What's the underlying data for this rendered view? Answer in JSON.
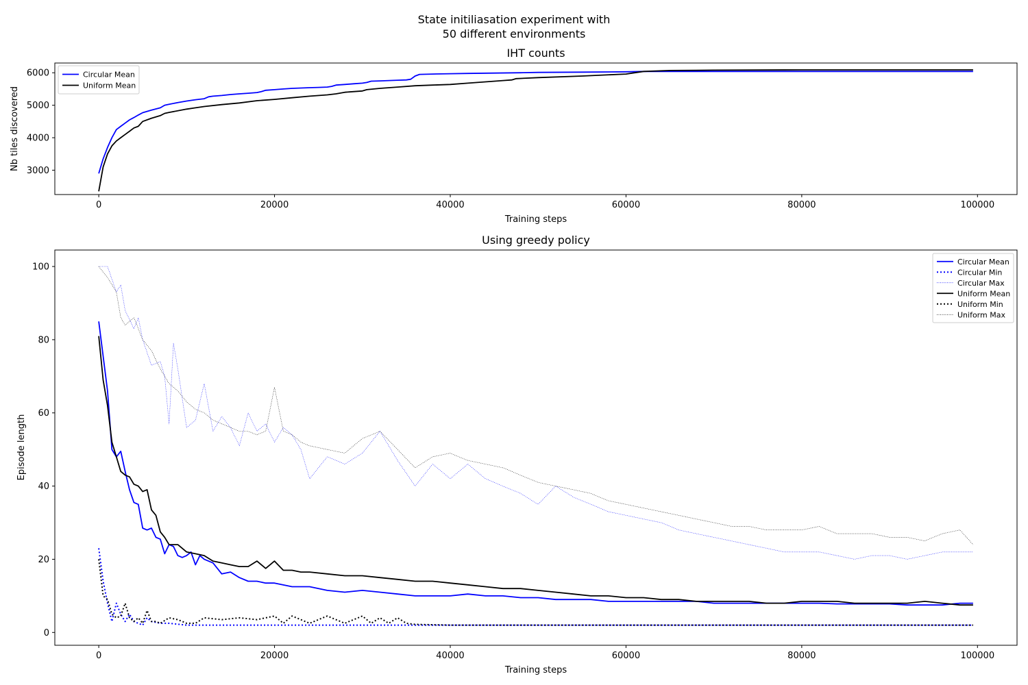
{
  "figure": {
    "suptitle_lines": [
      "State initiliasation experiment with",
      "50 different environments"
    ]
  },
  "chart_data": [
    {
      "type": "line",
      "title": "IHT counts",
      "xlabel": "Training steps",
      "ylabel": "Nb tiles discovered",
      "xlim": [
        -5000,
        104500
      ],
      "ylim": [
        2250,
        6300
      ],
      "xticks": [
        0,
        20000,
        40000,
        60000,
        80000,
        100000
      ],
      "yticks": [
        3000,
        4000,
        5000,
        6000
      ],
      "grid": false,
      "legend_position": "upper-left",
      "series": [
        {
          "name": "Circular Mean",
          "color": "#0000ff",
          "style": "solid",
          "x": [
            0,
            500,
            1000,
            1500,
            2000,
            2500,
            3000,
            3500,
            4000,
            4500,
            5000,
            6000,
            7000,
            7500,
            8000,
            9000,
            10000,
            11000,
            12000,
            12500,
            13000,
            14000,
            15000,
            16000,
            17000,
            18000,
            18500,
            19000,
            20000,
            21000,
            22000,
            23000,
            24000,
            25000,
            26000,
            26500,
            27000,
            28000,
            29000,
            30000,
            30500,
            31000,
            32000,
            33000,
            34000,
            35000,
            35500,
            36000,
            36500,
            38000,
            40000,
            42000,
            45000,
            48000,
            50000,
            55000,
            60000,
            62000,
            65000,
            70000,
            80000,
            90000,
            99500
          ],
          "y": [
            2900,
            3350,
            3700,
            4000,
            4250,
            4350,
            4450,
            4550,
            4620,
            4700,
            4770,
            4850,
            4920,
            5000,
            5030,
            5080,
            5130,
            5170,
            5200,
            5260,
            5280,
            5300,
            5330,
            5350,
            5370,
            5390,
            5420,
            5460,
            5480,
            5500,
            5520,
            5530,
            5540,
            5550,
            5560,
            5580,
            5620,
            5640,
            5660,
            5680,
            5700,
            5740,
            5750,
            5760,
            5770,
            5780,
            5800,
            5900,
            5950,
            5960,
            5970,
            5980,
            5990,
            6000,
            6010,
            6020,
            6030,
            6040,
            6040,
            6040,
            6040,
            6040,
            6040
          ]
        },
        {
          "name": "Uniform Mean",
          "color": "#000000",
          "style": "solid",
          "x": [
            0,
            500,
            1000,
            1500,
            2000,
            2500,
            3000,
            3500,
            4000,
            4500,
            5000,
            6000,
            7000,
            7500,
            8000,
            10000,
            11000,
            12000,
            14000,
            16000,
            18000,
            20000,
            22000,
            24000,
            26000,
            27000,
            28000,
            30000,
            30500,
            32000,
            34000,
            36000,
            38000,
            40000,
            42000,
            44000,
            46000,
            47000,
            47500,
            50000,
            55000,
            60000,
            61000,
            62000,
            65000,
            70000,
            80000,
            90000,
            99500
          ],
          "y": [
            2350,
            3100,
            3500,
            3750,
            3900,
            4000,
            4100,
            4200,
            4300,
            4350,
            4500,
            4600,
            4680,
            4750,
            4780,
            4880,
            4920,
            4960,
            5020,
            5070,
            5140,
            5180,
            5230,
            5280,
            5320,
            5350,
            5400,
            5440,
            5480,
            5520,
            5560,
            5600,
            5620,
            5640,
            5680,
            5720,
            5760,
            5780,
            5820,
            5850,
            5900,
            5960,
            6000,
            6040,
            6070,
            6080,
            6090,
            6090,
            6090
          ]
        }
      ]
    },
    {
      "type": "line",
      "title": "Using greedy policy",
      "xlabel": "Training steps",
      "ylabel": "Episode length",
      "xlim": [
        -5000,
        104500
      ],
      "ylim": [
        -3.5,
        104.5
      ],
      "xticks": [
        0,
        20000,
        40000,
        60000,
        80000,
        100000
      ],
      "yticks": [
        0,
        20,
        40,
        60,
        80,
        100
      ],
      "grid": false,
      "legend_position": "upper-right",
      "series": [
        {
          "name": "Circular Mean",
          "color": "#0000ff",
          "style": "solid",
          "x": [
            0,
            1000,
            1500,
            2000,
            2500,
            3000,
            3500,
            4000,
            4500,
            5000,
            5500,
            6000,
            6500,
            7000,
            7500,
            8000,
            8500,
            9000,
            9500,
            10000,
            10500,
            11000,
            11500,
            12000,
            13000,
            14000,
            15000,
            16000,
            17000,
            18000,
            19000,
            20000,
            22000,
            24000,
            26000,
            28000,
            30000,
            32000,
            34000,
            36000,
            38000,
            40000,
            42000,
            44000,
            46000,
            48000,
            50000,
            52000,
            54000,
            56000,
            58000,
            60000,
            62000,
            64000,
            66000,
            68000,
            70000,
            72000,
            74000,
            76000,
            78000,
            80000,
            82000,
            84000,
            86000,
            88000,
            90000,
            92000,
            94000,
            96000,
            98000,
            99500
          ],
          "y": [
            85,
            66,
            50,
            48,
            49.5,
            44,
            39,
            35.5,
            35,
            28.5,
            28,
            28.5,
            26,
            25.5,
            21.5,
            24,
            23.5,
            21,
            20.5,
            21,
            22,
            18.5,
            21,
            20,
            19,
            16,
            16.5,
            15,
            14,
            14,
            13.5,
            13.5,
            12.5,
            12.5,
            11.5,
            11,
            11.5,
            11,
            10.5,
            10,
            10,
            10,
            10.5,
            10,
            10,
            9.5,
            9.5,
            9,
            9,
            9,
            8.5,
            8.5,
            8.5,
            8.5,
            8.5,
            8.5,
            8,
            8,
            8,
            8,
            8,
            8,
            8,
            7.8,
            7.8,
            7.8,
            7.8,
            7.5,
            7.5,
            7.5,
            8,
            8
          ]
        },
        {
          "name": "Circular Min",
          "color": "#0000ff",
          "style": "dotted",
          "x": [
            0,
            500,
            1000,
            1500,
            2000,
            2500,
            3000,
            3500,
            4000,
            5000,
            5500,
            6000,
            7000,
            8000,
            10000,
            15000,
            20000,
            25000,
            30000,
            35000,
            40000,
            50000,
            60000,
            70000,
            80000,
            90000,
            99500
          ],
          "y": [
            23,
            14,
            8,
            3,
            8,
            5,
            3,
            5,
            3,
            2,
            4,
            3,
            2.5,
            2.5,
            2,
            2,
            2,
            2,
            2,
            2,
            2,
            2,
            2,
            2,
            2,
            2,
            2
          ]
        },
        {
          "name": "Circular Max",
          "color": "#0000ff",
          "style": "thin-dotted",
          "x": [
            0,
            1000,
            2000,
            2500,
            3000,
            4000,
            4500,
            5000,
            6000,
            7000,
            7500,
            8000,
            8500,
            9000,
            10000,
            11000,
            12000,
            13000,
            14000,
            15000,
            16000,
            17000,
            18000,
            19000,
            20000,
            21000,
            22000,
            23000,
            24000,
            26000,
            28000,
            30000,
            32000,
            34000,
            36000,
            38000,
            40000,
            42000,
            44000,
            46000,
            48000,
            50000,
            52000,
            54000,
            56000,
            58000,
            60000,
            62000,
            64000,
            66000,
            68000,
            70000,
            72000,
            74000,
            76000,
            78000,
            80000,
            82000,
            84000,
            86000,
            88000,
            90000,
            92000,
            94000,
            96000,
            98000,
            99500
          ],
          "y": [
            100,
            100,
            93,
            95,
            88,
            83,
            86,
            80,
            73,
            74,
            70,
            57,
            79,
            72,
            56,
            58,
            68,
            55,
            59,
            56,
            51,
            60,
            55,
            57,
            52,
            56,
            54,
            50,
            42,
            48,
            46,
            49,
            55,
            47,
            40,
            46,
            42,
            46,
            42,
            40,
            38,
            35,
            40,
            37,
            35,
            33,
            32,
            31,
            30,
            28,
            27,
            26,
            25,
            24,
            23,
            22,
            22,
            22,
            21,
            20,
            21,
            21,
            20,
            21,
            22,
            22,
            22
          ]
        },
        {
          "name": "Uniform Mean",
          "color": "#000000",
          "style": "solid",
          "x": [
            0,
            500,
            1000,
            1500,
            2000,
            2500,
            3000,
            3500,
            4000,
            4500,
            5000,
            5500,
            6000,
            6500,
            7000,
            7500,
            8000,
            9000,
            10000,
            11000,
            12000,
            13000,
            14000,
            15000,
            16000,
            17000,
            18000,
            19000,
            20000,
            21000,
            22000,
            23000,
            24000,
            26000,
            28000,
            30000,
            32000,
            34000,
            36000,
            38000,
            40000,
            42000,
            44000,
            46000,
            48000,
            50000,
            52000,
            54000,
            56000,
            58000,
            60000,
            62000,
            64000,
            66000,
            68000,
            70000,
            72000,
            74000,
            76000,
            78000,
            80000,
            82000,
            84000,
            86000,
            88000,
            90000,
            92000,
            94000,
            96000,
            98000,
            99500
          ],
          "y": [
            81,
            69,
            62,
            52,
            48,
            44,
            43,
            42.5,
            40.5,
            40,
            38.5,
            39,
            33.5,
            32,
            27.5,
            26,
            24,
            24,
            22,
            21.5,
            21,
            19.5,
            19,
            18.5,
            18,
            18,
            19.5,
            17.5,
            19.5,
            17,
            17,
            16.5,
            16.5,
            16,
            15.5,
            15.5,
            15,
            14.5,
            14,
            14,
            13.5,
            13,
            12.5,
            12,
            12,
            11.5,
            11,
            10.5,
            10,
            10,
            9.5,
            9.5,
            9,
            9,
            8.5,
            8.5,
            8.5,
            8.5,
            8,
            8,
            8.5,
            8.5,
            8.5,
            8,
            8,
            8,
            8,
            8.5,
            8,
            7.5,
            7.5
          ]
        },
        {
          "name": "Uniform Min",
          "color": "#000000",
          "style": "dotted",
          "x": [
            0,
            500,
            1000,
            1500,
            2000,
            2500,
            3000,
            3500,
            4000,
            4500,
            5000,
            5500,
            6000,
            6500,
            7000,
            8000,
            9000,
            10000,
            11000,
            12000,
            14000,
            16000,
            18000,
            20000,
            21000,
            22000,
            24000,
            26000,
            28000,
            30000,
            31000,
            32000,
            33000,
            34000,
            35000,
            36000,
            40000,
            50000,
            60000,
            70000,
            80000,
            90000,
            99500
          ],
          "y": [
            20,
            10,
            9,
            5,
            4,
            4.5,
            8,
            4,
            3,
            4,
            2.5,
            6,
            3,
            3,
            2.5,
            4,
            3.5,
            2.5,
            2.5,
            4,
            3.5,
            4,
            3.5,
            4.5,
            2.5,
            4.5,
            2.5,
            4.5,
            2.5,
            4.5,
            2.5,
            4,
            2.5,
            4,
            2.5,
            2.2,
            2,
            2,
            2,
            2,
            2,
            2,
            2
          ]
        },
        {
          "name": "Uniform Max",
          "color": "#000000",
          "style": "thin-dotted",
          "x": [
            0,
            1000,
            2000,
            2500,
            3000,
            4000,
            5000,
            6000,
            7000,
            8000,
            9000,
            10000,
            11000,
            12000,
            13000,
            14000,
            15000,
            16000,
            17000,
            18000,
            19000,
            20000,
            21000,
            22000,
            23000,
            24000,
            26000,
            28000,
            30000,
            32000,
            34000,
            36000,
            38000,
            40000,
            42000,
            44000,
            46000,
            48000,
            50000,
            52000,
            54000,
            56000,
            58000,
            60000,
            62000,
            64000,
            66000,
            68000,
            70000,
            72000,
            74000,
            76000,
            78000,
            80000,
            82000,
            84000,
            86000,
            88000,
            90000,
            92000,
            94000,
            96000,
            98000,
            99500
          ],
          "y": [
            100,
            97,
            93,
            86,
            84,
            86,
            80,
            77,
            72,
            68,
            66,
            63,
            61,
            60,
            58,
            57,
            56,
            55,
            55,
            54,
            55,
            67,
            55,
            54,
            52,
            51,
            50,
            49,
            53,
            55,
            50,
            45,
            48,
            49,
            47,
            46,
            45,
            43,
            41,
            40,
            39,
            38,
            36,
            35,
            34,
            33,
            32,
            31,
            30,
            29,
            29,
            28,
            28,
            28,
            29,
            27,
            27,
            27,
            26,
            26,
            25,
            27,
            28,
            24
          ]
        }
      ]
    }
  ]
}
